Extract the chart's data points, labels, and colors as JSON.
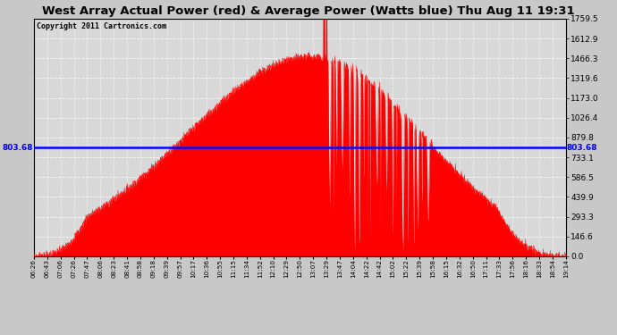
{
  "title": "West Array Actual Power (red) & Average Power (Watts blue) Thu Aug 11 19:31",
  "copyright": "Copyright 2011 Cartronics.com",
  "average_power": 803.68,
  "y_max": 1759.5,
  "y_ticks": [
    0.0,
    146.6,
    293.3,
    439.9,
    586.5,
    733.1,
    879.8,
    1026.4,
    1173.0,
    1319.6,
    1466.3,
    1612.9,
    1759.5
  ],
  "x_labels": [
    "06:26",
    "06:43",
    "07:06",
    "07:26",
    "07:47",
    "08:06",
    "08:23",
    "08:41",
    "08:58",
    "09:18",
    "09:39",
    "09:57",
    "10:17",
    "10:36",
    "10:55",
    "11:15",
    "11:34",
    "11:52",
    "12:10",
    "12:29",
    "12:50",
    "13:07",
    "13:29",
    "13:47",
    "14:04",
    "14:22",
    "14:42",
    "15:02",
    "15:22",
    "15:39",
    "15:58",
    "16:15",
    "16:32",
    "16:50",
    "17:11",
    "17:33",
    "17:56",
    "18:16",
    "18:33",
    "18:54",
    "19:14"
  ],
  "bg_color": "#d8d8d8",
  "fill_color": "#ff0000",
  "avg_line_color": "#0000ff",
  "avg_value_label": "803.68"
}
